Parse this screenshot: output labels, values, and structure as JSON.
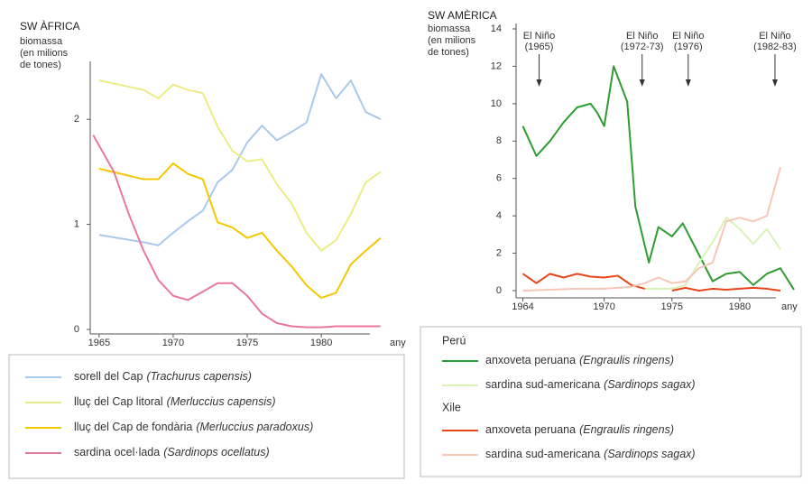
{
  "chart_data": [
    {
      "type": "line",
      "title": "SW ÀFRICA",
      "ylabel": [
        "biomassa",
        "(en milions",
        "de tones)"
      ],
      "xlabel": "any",
      "xlim": [
        1964.4,
        1984.5
      ],
      "xticks": [
        1965,
        1970,
        1975,
        1980
      ],
      "ylim": [
        0,
        2.5
      ],
      "yticks": [
        0,
        1,
        2
      ],
      "series": [
        {
          "name": "sorell del Cap",
          "latin": "(Trachurus capensis)",
          "color": "#a9c9ea",
          "x": [
            1965,
            1968,
            1969,
            1970,
            1971,
            1972,
            1973,
            1974,
            1975,
            1976,
            1977,
            1978,
            1979,
            1980,
            1981,
            1982,
            1983,
            1984
          ],
          "values": [
            0.9,
            0.83,
            0.8,
            0.92,
            1.03,
            1.13,
            1.4,
            1.52,
            1.78,
            1.94,
            1.8,
            1.88,
            1.97,
            2.43,
            2.2,
            2.37,
            2.07,
            2.0
          ]
        },
        {
          "name": "lluç del Cap litoral",
          "latin": "(Merluccius capensis)",
          "color": "#ecec84",
          "x": [
            1965,
            1968,
            1969,
            1970,
            1971,
            1972,
            1973,
            1974,
            1975,
            1976,
            1977,
            1978,
            1979,
            1980,
            1981,
            1982,
            1983,
            1984
          ],
          "values": [
            2.37,
            2.28,
            2.2,
            2.33,
            2.28,
            2.25,
            1.93,
            1.7,
            1.6,
            1.62,
            1.38,
            1.2,
            0.92,
            0.75,
            0.85,
            1.1,
            1.4,
            1.5
          ]
        },
        {
          "name": "lluç del Cap de fondària",
          "latin": "(Merluccius paradoxus)",
          "color": "#f4c800",
          "x": [
            1965,
            1968,
            1969,
            1970,
            1971,
            1972,
            1973,
            1974,
            1975,
            1976,
            1977,
            1978,
            1979,
            1980,
            1981,
            1982,
            1983,
            1984
          ],
          "values": [
            1.53,
            1.43,
            1.43,
            1.58,
            1.48,
            1.43,
            1.02,
            0.97,
            0.87,
            0.92,
            0.75,
            0.6,
            0.42,
            0.3,
            0.35,
            0.62,
            0.75,
            0.87
          ]
        },
        {
          "name": "sardina ocel·lada",
          "latin": "(Sardinops ocellatus)",
          "color": "#e8789a",
          "x": [
            1964.6,
            1966,
            1967,
            1968,
            1969,
            1970,
            1971,
            1972,
            1973,
            1974,
            1975,
            1976,
            1977,
            1978,
            1979,
            1980,
            1981,
            1982,
            1983,
            1984
          ],
          "values": [
            1.85,
            1.5,
            1.1,
            0.75,
            0.47,
            0.32,
            0.28,
            0.36,
            0.44,
            0.44,
            0.32,
            0.15,
            0.06,
            0.03,
            0.02,
            0.02,
            0.03,
            0.03,
            0.03,
            0.03
          ]
        }
      ]
    },
    {
      "type": "line",
      "title": "SW AMÈRICA",
      "ylabel": [
        "biomassa",
        "(en milions",
        "de tones)"
      ],
      "xlabel": "any",
      "xlim": [
        1963.5,
        1984
      ],
      "xticks": [
        1964,
        1970,
        1975,
        1980
      ],
      "ylim": [
        0,
        14
      ],
      "yticks": [
        0,
        2,
        4,
        6,
        8,
        10,
        12,
        14
      ],
      "groups": [
        "Perú",
        "Xile"
      ],
      "annotations": [
        {
          "text": [
            "El Niño",
            "(1965)"
          ],
          "x": 1965.2
        },
        {
          "text": [
            "El Niño",
            "(1972-73)"
          ],
          "x": 1972.8
        },
        {
          "text": [
            "El Niño",
            "(1976)"
          ],
          "x": 1976.2
        },
        {
          "text": [
            "El Niño",
            "(1982-83)"
          ],
          "x": 1982.6
        }
      ],
      "series": [
        {
          "name": "anxoveta peruana",
          "latin": "(Engraulis ringens)",
          "group": 0,
          "color": "#2e9c30",
          "x": [
            1964,
            1965,
            1966,
            1967,
            1968,
            1969,
            1969.5,
            1970,
            1970.7,
            1971.7,
            1972.3,
            1973.3,
            1974,
            1975,
            1975.8,
            1978,
            1979,
            1980,
            1981,
            1982,
            1983,
            1984
          ],
          "values": [
            8.8,
            7.2,
            8.0,
            9.0,
            9.8,
            10.0,
            9.5,
            8.8,
            12.0,
            10.1,
            4.5,
            1.5,
            3.4,
            2.9,
            3.6,
            0.5,
            0.9,
            1.0,
            0.3,
            0.9,
            1.2,
            0.05
          ]
        },
        {
          "name": "sardina sud-americana",
          "latin": "(Sardinops sagax)",
          "group": 0,
          "color": "#d8f2b8",
          "x": [
            1973,
            1974,
            1975,
            1976,
            1977,
            1978,
            1979,
            1980,
            1981,
            1982,
            1983
          ],
          "values": [
            0.1,
            0.1,
            0.1,
            0.3,
            1.5,
            2.6,
            3.9,
            3.3,
            2.5,
            3.3,
            2.2
          ]
        },
        {
          "name": "anxoveta peruana",
          "latin": "(Engraulis ringens)",
          "group": 1,
          "color": "#e8441a",
          "x": [
            1964,
            1965,
            1966,
            1967,
            1968,
            1969,
            1970,
            1971,
            1972,
            1973,
            1974,
            1975,
            1976,
            1977,
            1978,
            1979,
            1980,
            1981,
            1982,
            1983
          ],
          "values": [
            0.9,
            0.4,
            0.9,
            0.7,
            0.9,
            0.75,
            0.7,
            0.8,
            0.3,
            0.1,
            null,
            0.0,
            0.15,
            0.0,
            0.1,
            0.05,
            0.1,
            0.15,
            0.1,
            0.0
          ]
        },
        {
          "name": "sardina sud-americana",
          "latin": "(Sardinops sagax)",
          "group": 1,
          "color": "#f7c6b6",
          "x": [
            1964,
            1966,
            1968,
            1970,
            1972,
            1973,
            1974,
            1975,
            1976,
            1977,
            1978,
            1979,
            1980,
            1981,
            1982,
            1983
          ],
          "values": [
            0.0,
            0.05,
            0.1,
            0.1,
            0.2,
            0.4,
            0.7,
            0.4,
            0.5,
            1.2,
            1.5,
            3.7,
            3.9,
            3.7,
            4.0,
            6.6
          ]
        }
      ]
    }
  ]
}
